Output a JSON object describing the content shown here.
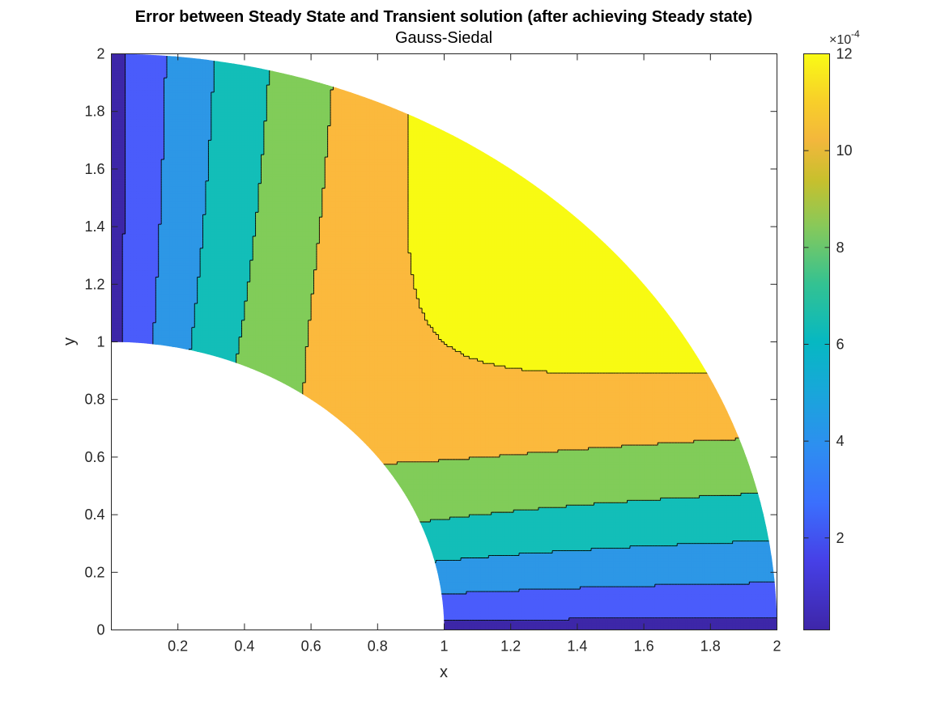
{
  "chart_data": {
    "type": "filled-contour",
    "title": "Error between Steady State and Transient solution (after achieving Steady state)",
    "subtitle": "Gauss-Siedal",
    "xlabel": "x",
    "ylabel": "y",
    "xlim": [
      0,
      2
    ],
    "ylim": [
      0,
      2
    ],
    "x_ticks": [
      "0.2",
      "0.4",
      "0.6",
      "0.8",
      "1",
      "1.2",
      "1.4",
      "1.6",
      "1.8",
      "2"
    ],
    "x_tick_values": [
      0.2,
      0.4,
      0.6,
      0.8,
      1.0,
      1.2,
      1.4,
      1.6,
      1.8,
      2.0
    ],
    "y_ticks": [
      "0",
      "0.2",
      "0.4",
      "0.6",
      "0.8",
      "1",
      "1.2",
      "1.4",
      "1.6",
      "1.8",
      "2"
    ],
    "y_tick_values": [
      0,
      0.2,
      0.4,
      0.6,
      0.8,
      1.0,
      1.2,
      1.4,
      1.6,
      1.8,
      2.0
    ],
    "domain": {
      "shape": "quarter annulus",
      "inner_radius": 1,
      "outer_radius": 2
    },
    "contour_levels": [
      0.0001,
      0.0003,
      0.0005,
      0.0007,
      0.0009,
      0.0011
    ],
    "band_colors": [
      "#3d27a8",
      "#4a5cfb",
      "#2d97e6",
      "#13beb8",
      "#81cc59",
      "#fbb93d",
      "#f8fa13"
    ],
    "colorbar": {
      "range": [
        1e-05,
        0.0012
      ],
      "tick_labels": [
        "2",
        "4",
        "6",
        "8",
        "10",
        "12"
      ],
      "tick_values": [
        2,
        4,
        6,
        8,
        10,
        12
      ],
      "exponent_base": "×10",
      "exponent_power": "-4",
      "colormap": "parula"
    },
    "grid": false,
    "legend": "colorbar-right"
  }
}
